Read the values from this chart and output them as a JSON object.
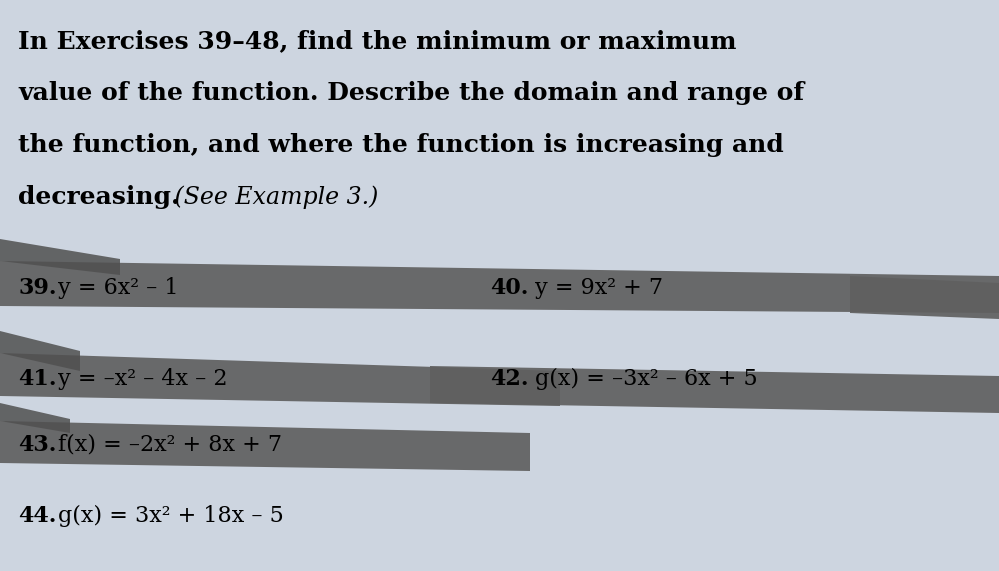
{
  "bg_color": "#cdd5e0",
  "title_lines": [
    "In Exercises 39–48, find the minimum or maximum",
    "value of the function. Describe the domain and range of",
    "the function, and where the function is increasing and"
  ],
  "bold_part": "decreasing.",
  "italic_part": " (See Example 3.)",
  "ribbon_color": "#606060",
  "ribbon_color2": "#505050",
  "font_size_title": 18,
  "font_size_ex": 16,
  "ex39_num": "39.",
  "ex39_expr": "y = 6x² – 1",
  "ex40_num": "40.",
  "ex40_expr": "y = 9x² + 7",
  "ex41_num": "41.",
  "ex41_expr": "y = –x² – 4x – 2",
  "ex42_num": "42.",
  "ex42_expr": "g(x) = –3x² – 6x + 5",
  "ex43_num": "43.",
  "ex43_expr": "f(x) = –2x² + 8x + 7",
  "ex44_num": "44.",
  "ex44_expr": "g(x) = 3x² + 18x – 5"
}
